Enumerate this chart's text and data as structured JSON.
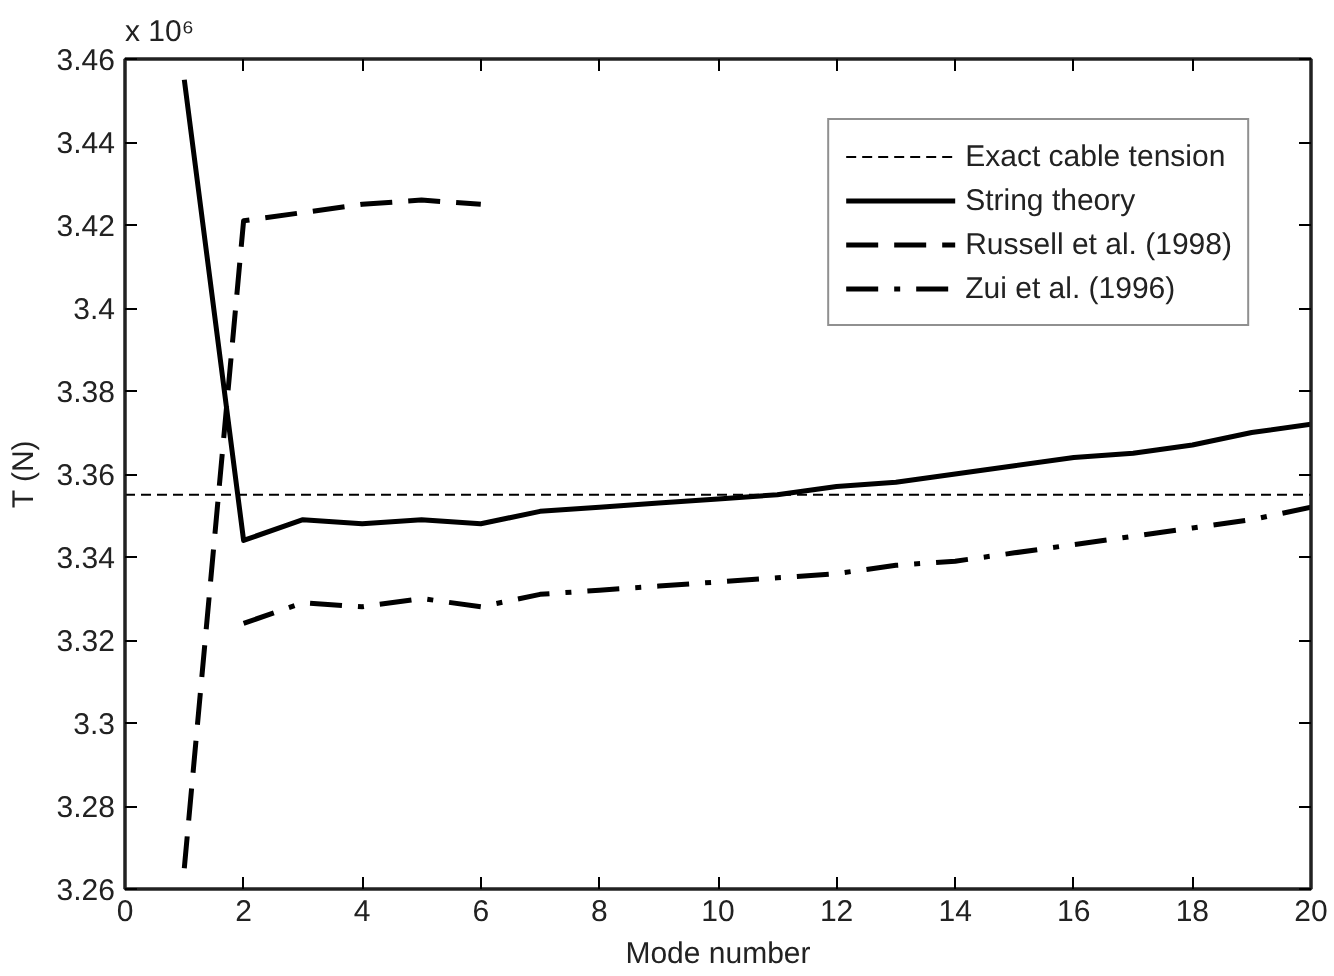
{
  "chart_data": {
    "type": "line",
    "xlabel": "Mode number",
    "ylabel": "T (N)",
    "annotations": [
      "x 10⁶"
    ],
    "xlim": [
      0,
      20
    ],
    "xticks": [
      0,
      2,
      4,
      6,
      8,
      10,
      12,
      14,
      16,
      18,
      20
    ],
    "ylim": [
      3.26,
      3.46
    ],
    "yticks": [
      3.26,
      3.28,
      3.3,
      3.32,
      3.34,
      3.36,
      3.38,
      3.4,
      3.42,
      3.44,
      3.46
    ],
    "grid": false,
    "legend": "top right",
    "marker": "none",
    "series": [
      {
        "name": "Exact cable tension",
        "color": "#000000",
        "line_style": "dashed",
        "x": [
          0,
          20
        ],
        "values": [
          3.355,
          3.355
        ]
      },
      {
        "name": "String theory",
        "color": "#000000",
        "line_style": "solid",
        "x": [
          1,
          2,
          3,
          4,
          5,
          6,
          7,
          8,
          9,
          10,
          11,
          12,
          13,
          14,
          15,
          16,
          17,
          18,
          19,
          20
        ],
        "values": [
          3.455,
          3.344,
          3.349,
          3.348,
          3.349,
          3.348,
          3.351,
          3.352,
          3.353,
          3.354,
          3.355,
          3.357,
          3.358,
          3.36,
          3.362,
          3.364,
          3.365,
          3.367,
          3.37,
          3.372
        ]
      },
      {
        "name": "Russell et al. (1998)",
        "color": "#000000",
        "line_style": "longdash",
        "x": [
          1,
          2,
          3,
          4,
          5,
          6
        ],
        "values": [
          3.265,
          3.421,
          3.423,
          3.425,
          3.426,
          3.425
        ]
      },
      {
        "name": "Zui et al. (1996)",
        "color": "#000000",
        "line_style": "dashdot",
        "x": [
          2,
          3,
          4,
          5,
          6,
          7,
          8,
          9,
          10,
          11,
          12,
          13,
          14,
          15,
          16,
          17,
          18,
          19,
          20
        ],
        "values": [
          3.324,
          3.329,
          3.328,
          3.33,
          3.328,
          3.331,
          3.332,
          3.333,
          3.334,
          3.335,
          3.336,
          3.338,
          3.339,
          3.341,
          3.343,
          3.345,
          3.347,
          3.349,
          3.352
        ]
      }
    ]
  }
}
